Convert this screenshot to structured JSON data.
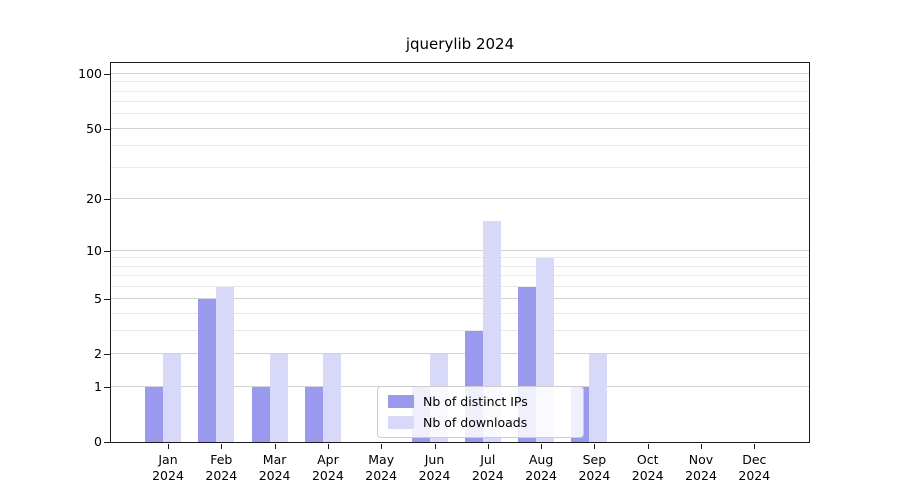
{
  "title": "jquerylib 2024",
  "chart_data": {
    "type": "bar",
    "title": "jquerylib 2024",
    "year": "2024",
    "categories": [
      "Jan",
      "Feb",
      "Mar",
      "Apr",
      "May",
      "Jun",
      "Jul",
      "Aug",
      "Sep",
      "Oct",
      "Nov",
      "Dec"
    ],
    "series": [
      {
        "name": "Nb of distinct IPs",
        "color": "#9999ee",
        "values": [
          1,
          5,
          1,
          1,
          0,
          1,
          3,
          6,
          1,
          0,
          0,
          0
        ]
      },
      {
        "name": "Nb of downloads",
        "color": "#d8d8f8",
        "values": [
          2,
          6,
          2,
          2,
          0,
          2,
          15,
          9,
          2,
          0,
          0,
          0
        ]
      }
    ],
    "xlabel": "",
    "ylabel": "",
    "y_scale": "log1p",
    "y_axis_top_value": 115,
    "y_major_ticks": [
      0,
      1,
      2,
      5,
      10,
      20,
      50,
      100
    ],
    "y_minor_gridlines": [
      3,
      4,
      6,
      7,
      8,
      9,
      30,
      40,
      60,
      70,
      80,
      90
    ],
    "grid": "horizontal major and minor",
    "legend_position": "lower center"
  },
  "colors": {
    "background": "#ffffff",
    "axis": "#1a1a1a",
    "major_grid": "#d2d2d2",
    "minor_grid": "#e9e9e9"
  }
}
